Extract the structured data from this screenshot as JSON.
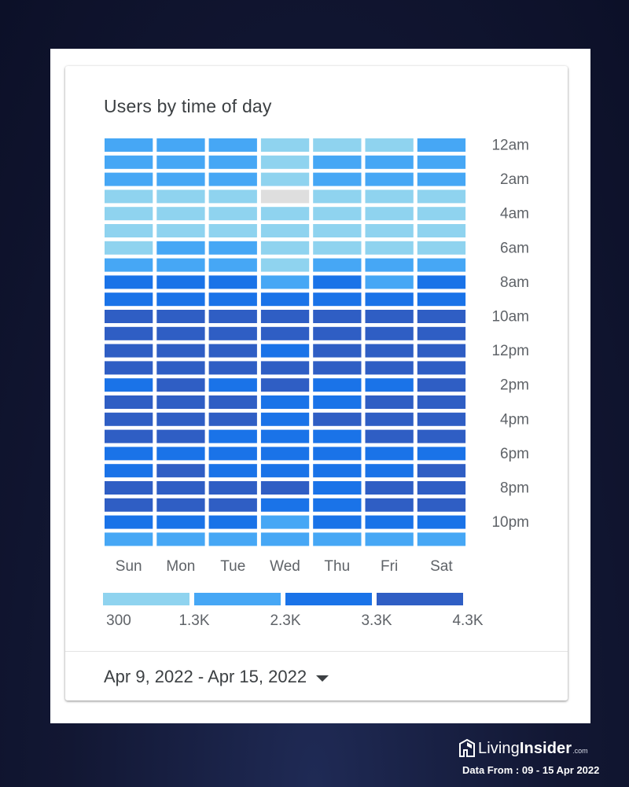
{
  "card": {
    "title": "Users by time of day",
    "date_range": "Apr 9, 2022 - Apr 15, 2022"
  },
  "chart_data": {
    "type": "heatmap",
    "title": "Users by time of day",
    "x_categories": [
      "Sun",
      "Mon",
      "Tue",
      "Wed",
      "Thu",
      "Fri",
      "Sat"
    ],
    "y_categories": [
      "12am",
      "1am",
      "2am",
      "3am",
      "4am",
      "5am",
      "6am",
      "7am",
      "8am",
      "9am",
      "10am",
      "11am",
      "12pm",
      "1pm",
      "2pm",
      "3pm",
      "4pm",
      "5pm",
      "6pm",
      "7pm",
      "8pm",
      "9pm",
      "10pm",
      "11pm"
    ],
    "y_tick_labels": [
      "12am",
      "2am",
      "4am",
      "6am",
      "8am",
      "10am",
      "12pm",
      "2pm",
      "4pm",
      "6pm",
      "8pm",
      "10pm"
    ],
    "values": [
      [
        1500,
        1500,
        1500,
        1000,
        900,
        900,
        1500
      ],
      [
        1500,
        1500,
        1500,
        1000,
        1500,
        1500,
        1500
      ],
      [
        1500,
        1500,
        1500,
        800,
        1500,
        1500,
        1500
      ],
      [
        900,
        900,
        900,
        null,
        900,
        900,
        900
      ],
      [
        800,
        800,
        800,
        800,
        800,
        800,
        800
      ],
      [
        700,
        700,
        700,
        700,
        700,
        700,
        700
      ],
      [
        1000,
        1500,
        1800,
        1000,
        1000,
        1000,
        1000
      ],
      [
        1500,
        1500,
        1500,
        900,
        1500,
        1500,
        1500
      ],
      [
        2500,
        2500,
        2500,
        1800,
        2500,
        1800,
        2500
      ],
      [
        2800,
        2800,
        2800,
        2800,
        2800,
        2800,
        2800
      ],
      [
        3600,
        3600,
        3600,
        3600,
        3600,
        3600,
        3600
      ],
      [
        3700,
        3700,
        3700,
        3700,
        3700,
        3700,
        3700
      ],
      [
        3600,
        3600,
        3600,
        2800,
        3600,
        3600,
        3600
      ],
      [
        3600,
        3600,
        3600,
        3600,
        3600,
        3600,
        3600
      ],
      [
        2800,
        3600,
        2800,
        3600,
        2800,
        2800,
        3600
      ],
      [
        3600,
        3600,
        3600,
        2800,
        2800,
        3600,
        3600
      ],
      [
        3700,
        3700,
        3600,
        2800,
        3600,
        3600,
        3600
      ],
      [
        3600,
        3600,
        2800,
        2800,
        2800,
        3600,
        3600
      ],
      [
        2800,
        2800,
        2800,
        2800,
        2800,
        2800,
        2800
      ],
      [
        2800,
        3600,
        2800,
        2800,
        2800,
        2800,
        3600
      ],
      [
        3600,
        3600,
        3600,
        3600,
        2800,
        3600,
        3600
      ],
      [
        3700,
        3600,
        3700,
        2800,
        2800,
        3600,
        3600
      ],
      [
        2800,
        2800,
        2800,
        1800,
        2800,
        2800,
        2800
      ],
      [
        1500,
        1500,
        1500,
        1500,
        1500,
        1500,
        1500
      ]
    ],
    "legend": {
      "tick_labels": [
        "300",
        "1.3K",
        "2.3K",
        "3.3K",
        "4.3K"
      ],
      "bins": [
        300,
        1300,
        2300,
        3300,
        4300
      ],
      "colors": [
        "#8fd3ef",
        "#46a7f5",
        "#1a73e8",
        "#2f5ec4"
      ]
    },
    "empty_color": "#dedede",
    "grid": false
  },
  "branding": {
    "name_light": "Living",
    "name_bold": "Insider",
    "name_suffix": ".com",
    "data_from": "Data From : 09 - 15 Apr 2022"
  }
}
